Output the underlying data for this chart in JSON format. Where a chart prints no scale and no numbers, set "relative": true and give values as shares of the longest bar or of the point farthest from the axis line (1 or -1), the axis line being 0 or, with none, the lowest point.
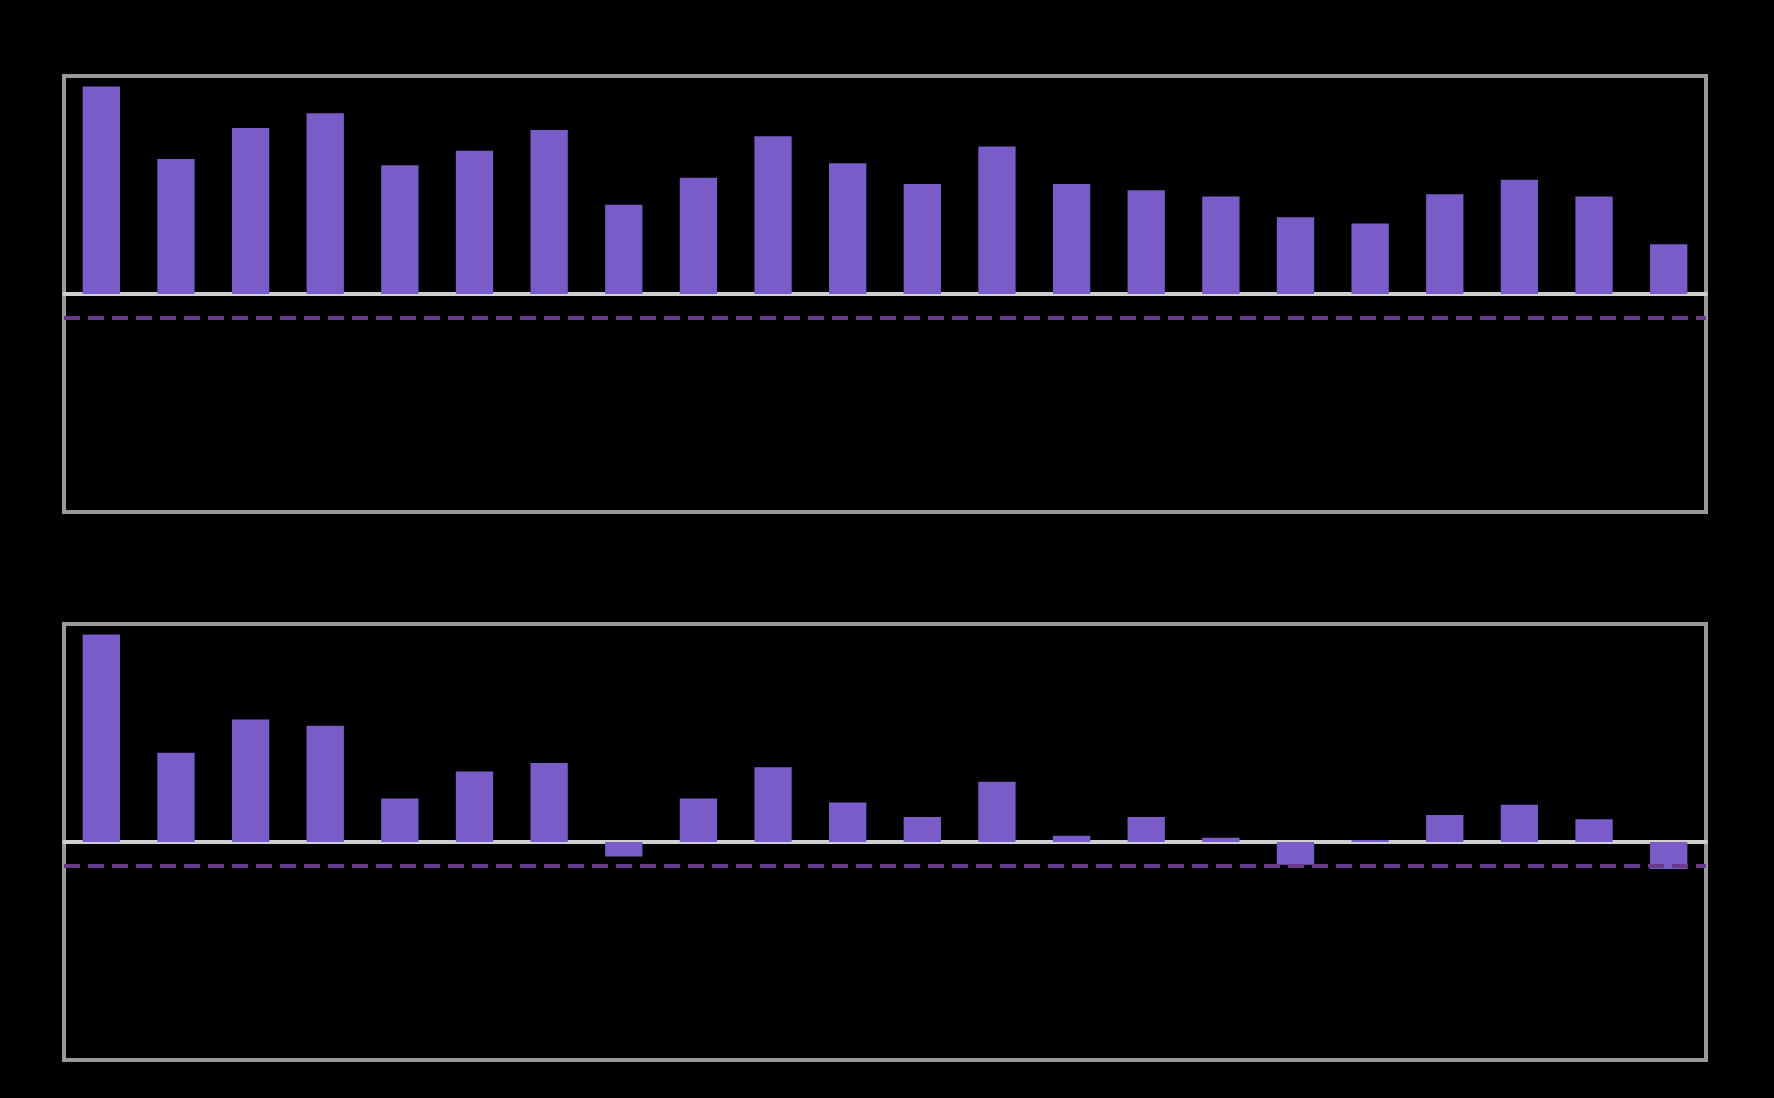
{
  "chart_data": [
    {
      "type": "bar",
      "relative": true,
      "grid": false,
      "categories": [
        null,
        null,
        null,
        null,
        null,
        null,
        null,
        null,
        null,
        null,
        null,
        null,
        null,
        null,
        null,
        null,
        null,
        null,
        null,
        null,
        null,
        null
      ],
      "series": [
        {
          "color": "#7a5cc8",
          "values": [
            1,
            0.65,
            0.8,
            0.87,
            0.62,
            0.69,
            0.79,
            0.43,
            0.56,
            0.76,
            0.63,
            0.53,
            0.71,
            0.53,
            0.5,
            0.47,
            0.37,
            0.34,
            0.48,
            0.55,
            0.47,
            0.24
          ]
        }
      ],
      "ref_lines": [
        {
          "axis": "y",
          "value": -0.11,
          "color": "#6a3a8a",
          "line_style": "dashed"
        }
      ]
    },
    {
      "type": "bar",
      "relative": true,
      "grid": false,
      "categories": [
        null,
        null,
        null,
        null,
        null,
        null,
        null,
        null,
        null,
        null,
        null,
        null,
        null,
        null,
        null,
        null,
        null,
        null,
        null,
        null,
        null,
        null
      ],
      "series": [
        {
          "color": "#7a5cc8",
          "values": [
            1,
            0.43,
            0.59,
            0.56,
            0.21,
            0.34,
            0.38,
            -0.07,
            0.21,
            0.36,
            0.19,
            0.12,
            0.29,
            0.03,
            0.12,
            0.02,
            -0.11,
            0.01,
            0.13,
            0.18,
            0.11,
            -0.13
          ]
        }
      ],
      "ref_lines": [
        {
          "axis": "y",
          "value": -0.11,
          "color": "#6a3a8a",
          "line_style": "dashed"
        }
      ]
    }
  ]
}
